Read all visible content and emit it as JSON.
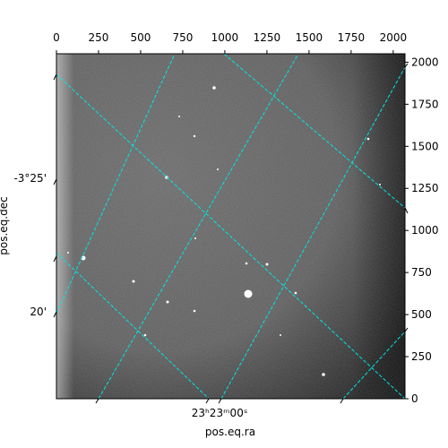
{
  "chart_data": {
    "type": "image",
    "xlabel": "pos.eq.ra",
    "ylabel": "pos.eq.dec",
    "xlim": [
      0,
      2070
    ],
    "xticks": [
      0,
      250,
      500,
      750,
      1000,
      1250,
      1500,
      1750,
      2000
    ],
    "ylim": [
      0,
      2050
    ],
    "yticks": [
      0,
      250,
      500,
      750,
      1000,
      1250,
      1500,
      1750,
      2000
    ],
    "wcs_x_tick_labels": [
      "23ʰ23ᵐ00ˢ"
    ],
    "wcs_y_tick_labels": [
      "-3°25'",
      "20'"
    ],
    "grid_color": "#00e5e5"
  }
}
